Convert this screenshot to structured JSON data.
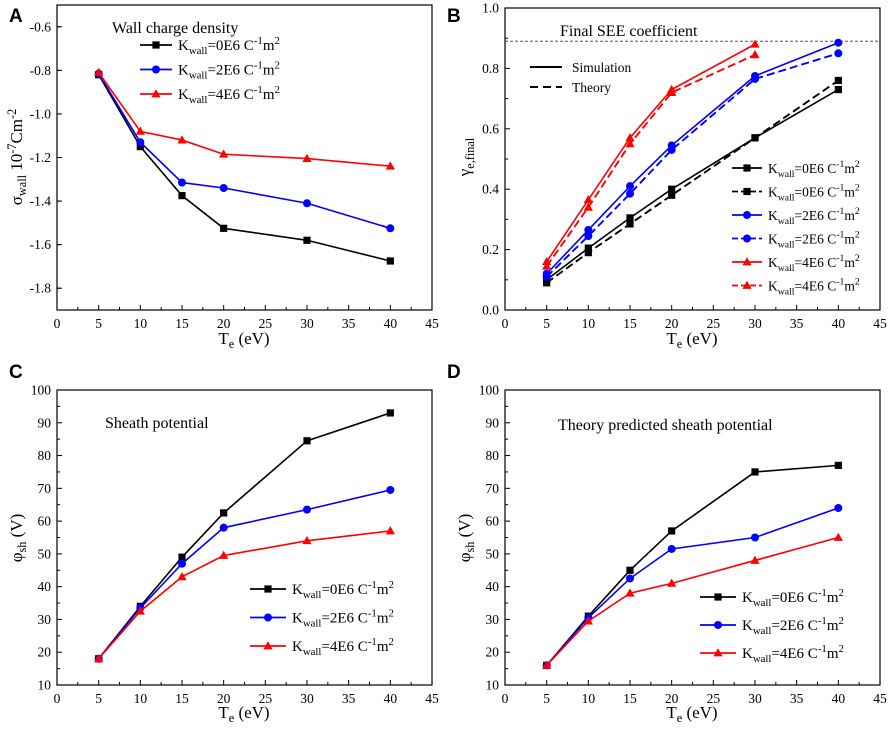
{
  "colors": {
    "black": "#000000",
    "blue": "#0000ff",
    "red": "#ff0000"
  },
  "chart_data": [
    {
      "panel": "A",
      "type": "line",
      "title": "Wall charge density",
      "xlabel": {
        "base": "T",
        "sub": "e",
        "rest": " (eV)"
      },
      "ylabel": {
        "base": "σ",
        "sub": "wall",
        "rest": " 10",
        "sup": "-7",
        "rest2": "Cm",
        "sup2": "-2"
      },
      "xlim": [
        0,
        45
      ],
      "ylim": [
        -1.9,
        -0.5
      ],
      "xticks": [
        0,
        5,
        10,
        15,
        20,
        25,
        30,
        35,
        40,
        45
      ],
      "yticks": [
        -0.6,
        -0.8,
        -1.0,
        -1.2,
        -1.4,
        -1.6,
        -1.8
      ],
      "xtick_labels": [
        "0",
        "5",
        "10",
        "15",
        "20",
        "25",
        "30",
        "35",
        "40",
        "45"
      ],
      "ytick_labels": [
        "-0.6",
        "-0.8",
        "-1.0",
        "-1.2",
        "-1.4",
        "-1.6",
        "-1.8"
      ],
      "x": [
        5,
        10,
        15,
        20,
        30,
        40
      ],
      "series": [
        {
          "name": "Kwall=0E6 C-1m2",
          "color": "black",
          "marker": "square",
          "dash": false,
          "values": [
            -0.82,
            -1.15,
            -1.375,
            -1.525,
            -1.58,
            -1.675
          ]
        },
        {
          "name": "Kwall=2E6 C-1m2",
          "color": "blue",
          "marker": "circle",
          "dash": false,
          "values": [
            -0.815,
            -1.13,
            -1.315,
            -1.34,
            -1.41,
            -1.525
          ]
        },
        {
          "name": "Kwall=4E6 C-1m2",
          "color": "red",
          "marker": "triangle",
          "dash": false,
          "values": [
            -0.81,
            -1.08,
            -1.12,
            -1.185,
            -1.205,
            -1.24
          ]
        }
      ],
      "legend": {
        "position": "top-center",
        "entries": [
          {
            "label": {
              "base": "K",
              "sub": "wall",
              "rest": "=0E6 C",
              "sup": "-1",
              "rest2": "m",
              "sup2": "2"
            }
          },
          {
            "label": {
              "base": "K",
              "sub": "wall",
              "rest": "=2E6 C",
              "sup": "-1",
              "rest2": "m",
              "sup2": "2"
            }
          },
          {
            "label": {
              "base": "K",
              "sub": "wall",
              "rest": "=4E6 C",
              "sup": "-1",
              "rest2": "m",
              "sup2": "2"
            }
          }
        ]
      }
    },
    {
      "panel": "B",
      "type": "line",
      "title": "Final SEE coefficient",
      "reference_line": 0.89,
      "xlabel": {
        "base": "T",
        "sub": "e",
        "rest": " (eV)"
      },
      "ylabel": {
        "base": "γ",
        "sub": "e,final"
      },
      "xlim": [
        0,
        45
      ],
      "ylim": [
        0.0,
        1.0
      ],
      "xticks": [
        0,
        5,
        10,
        15,
        20,
        25,
        30,
        35,
        40,
        45
      ],
      "yticks": [
        0.0,
        0.2,
        0.4,
        0.6,
        0.8,
        1.0
      ],
      "xtick_labels": [
        "0",
        "5",
        "10",
        "15",
        "20",
        "25",
        "30",
        "35",
        "40",
        "45"
      ],
      "ytick_labels": [
        "0.0",
        "0.2",
        "0.4",
        "0.6",
        "0.8",
        "1.0"
      ],
      "series": [
        {
          "name": "Kwall=0E6 C-1m2 Simulation",
          "color": "black",
          "marker": "square",
          "dash": false,
          "x": [
            5,
            10,
            15,
            20,
            30,
            40
          ],
          "values": [
            0.1,
            0.205,
            0.305,
            0.4,
            0.57,
            0.73
          ]
        },
        {
          "name": "Kwall=0E6 C-1m2 Theory",
          "color": "black",
          "marker": "square",
          "dash": true,
          "x": [
            5,
            10,
            15,
            20,
            30,
            40
          ],
          "values": [
            0.09,
            0.19,
            0.285,
            0.38,
            0.57,
            0.76
          ]
        },
        {
          "name": "Kwall=2E6 C-1m2 Simulation",
          "color": "blue",
          "marker": "circle",
          "dash": false,
          "x": [
            5,
            10,
            15,
            20,
            30,
            40
          ],
          "values": [
            0.12,
            0.265,
            0.41,
            0.545,
            0.775,
            0.885
          ]
        },
        {
          "name": "Kwall=2E6 C-1m2 Theory",
          "color": "blue",
          "marker": "circle",
          "dash": true,
          "x": [
            5,
            10,
            15,
            20,
            30,
            40
          ],
          "values": [
            0.11,
            0.245,
            0.385,
            0.53,
            0.765,
            0.85
          ]
        },
        {
          "name": "Kwall=4E6 C-1m2 Simulation",
          "color": "red",
          "marker": "triangle",
          "dash": false,
          "x": [
            5,
            10,
            15,
            20,
            30
          ],
          "values": [
            0.16,
            0.365,
            0.57,
            0.73,
            0.88
          ]
        },
        {
          "name": "Kwall=4E6 C-1m2 Theory",
          "color": "red",
          "marker": "triangle",
          "dash": true,
          "x": [
            5,
            10,
            15,
            20,
            30
          ],
          "values": [
            0.145,
            0.34,
            0.55,
            0.72,
            0.845
          ]
        }
      ],
      "style_legend": {
        "position": "top-left",
        "entries": [
          {
            "label": "Simulation",
            "dash": false
          },
          {
            "label": "Theory",
            "dash": true
          }
        ]
      },
      "legend": {
        "position": "bottom-right",
        "entries": [
          {
            "label": {
              "base": "K",
              "sub": "wall",
              "rest": "=0E6 C",
              "sup": "-1",
              "rest2": "m",
              "sup2": "2"
            }
          },
          {
            "label": {
              "base": "K",
              "sub": "wall",
              "rest": "=0E6 C",
              "sup": "-1",
              "rest2": "m",
              "sup2": "2"
            }
          },
          {
            "label": {
              "base": "K",
              "sub": "wall",
              "rest": "=2E6 C",
              "sup": "-1",
              "rest2": "m",
              "sup2": "2"
            }
          },
          {
            "label": {
              "base": "K",
              "sub": "wall",
              "rest": "=2E6 C",
              "sup": "-1",
              "rest2": "m",
              "sup2": "2"
            }
          },
          {
            "label": {
              "base": "K",
              "sub": "wall",
              "rest": "=4E6 C",
              "sup": "-1",
              "rest2": "m",
              "sup2": "2"
            }
          },
          {
            "label": {
              "base": "K",
              "sub": "wall",
              "rest": "=4E6 C",
              "sup": "-1",
              "rest2": "m",
              "sup2": "2"
            }
          }
        ]
      }
    },
    {
      "panel": "C",
      "type": "line",
      "title": "Sheath potential",
      "xlabel": {
        "base": "T",
        "sub": "e",
        "rest": " (eV)"
      },
      "ylabel": {
        "base": "φ",
        "sub": "sh",
        "rest": " (V)"
      },
      "xlim": [
        0,
        45
      ],
      "ylim": [
        10,
        100
      ],
      "xticks": [
        0,
        5,
        10,
        15,
        20,
        25,
        30,
        35,
        40,
        45
      ],
      "yticks": [
        10,
        20,
        30,
        40,
        50,
        60,
        70,
        80,
        90,
        100
      ],
      "xtick_labels": [
        "0",
        "5",
        "10",
        "15",
        "20",
        "25",
        "30",
        "35",
        "40",
        "45"
      ],
      "ytick_labels": [
        "10",
        "20",
        "30",
        "40",
        "50",
        "60",
        "70",
        "80",
        "90",
        "100"
      ],
      "x": [
        5,
        10,
        15,
        20,
        30,
        40
      ],
      "series": [
        {
          "name": "Kwall=0E6 C-1m2",
          "color": "black",
          "marker": "square",
          "dash": false,
          "values": [
            18,
            34,
            49,
            62.5,
            84.5,
            93
          ]
        },
        {
          "name": "Kwall=2E6 C-1m2",
          "color": "blue",
          "marker": "circle",
          "dash": false,
          "values": [
            18,
            33.5,
            47,
            58,
            63.5,
            69.5
          ]
        },
        {
          "name": "Kwall=4E6 C-1m2",
          "color": "red",
          "marker": "triangle",
          "dash": false,
          "values": [
            18,
            32.5,
            43,
            49.5,
            54,
            57
          ]
        }
      ],
      "legend": {
        "position": "bottom-right",
        "entries": [
          {
            "label": {
              "base": "K",
              "sub": "wall",
              "rest": "=0E6 C",
              "sup": "-1",
              "rest2": "m",
              "sup2": "2"
            }
          },
          {
            "label": {
              "base": "K",
              "sub": "wall",
              "rest": "=2E6 C",
              "sup": "-1",
              "rest2": "m",
              "sup2": "2"
            }
          },
          {
            "label": {
              "base": "K",
              "sub": "wall",
              "rest": "=4E6 C",
              "sup": "-1",
              "rest2": "m",
              "sup2": "2"
            }
          }
        ]
      }
    },
    {
      "panel": "D",
      "type": "line",
      "title": "Theory predicted sheath potential",
      "xlabel": {
        "base": "T",
        "sub": "e",
        "rest": " (eV)"
      },
      "ylabel": {
        "base": "φ",
        "sub": "sh",
        "rest": " (V)"
      },
      "xlim": [
        0,
        45
      ],
      "ylim": [
        10,
        100
      ],
      "xticks": [
        0,
        5,
        10,
        15,
        20,
        25,
        30,
        35,
        40,
        45
      ],
      "yticks": [
        10,
        20,
        30,
        40,
        50,
        60,
        70,
        80,
        90,
        100
      ],
      "xtick_labels": [
        "0",
        "5",
        "10",
        "15",
        "20",
        "25",
        "30",
        "35",
        "40",
        "45"
      ],
      "ytick_labels": [
        "10",
        "20",
        "30",
        "40",
        "50",
        "60",
        "70",
        "80",
        "90",
        "100"
      ],
      "x": [
        5,
        10,
        15,
        20,
        30,
        40
      ],
      "series": [
        {
          "name": "Kwall=0E6 C-1m2",
          "color": "black",
          "marker": "square",
          "dash": false,
          "values": [
            16,
            31,
            45,
            57,
            75,
            77
          ]
        },
        {
          "name": "Kwall=2E6 C-1m2",
          "color": "blue",
          "marker": "circle",
          "dash": false,
          "values": [
            16,
            30.5,
            42.5,
            51.5,
            55,
            64
          ]
        },
        {
          "name": "Kwall=4E6 C-1m2",
          "color": "red",
          "marker": "triangle",
          "dash": false,
          "values": [
            16,
            29.5,
            38,
            41,
            48,
            55
          ]
        }
      ],
      "legend": {
        "position": "bottom-right",
        "entries": [
          {
            "label": {
              "base": "K",
              "sub": "wall",
              "rest": "=0E6 C",
              "sup": "-1",
              "rest2": "m",
              "sup2": "2"
            }
          },
          {
            "label": {
              "base": "K",
              "sub": "wall",
              "rest": "=2E6 C",
              "sup": "-1",
              "rest2": "m",
              "sup2": "2"
            }
          },
          {
            "label": {
              "base": "K",
              "sub": "wall",
              "rest": "=4E6 C",
              "sup": "-1",
              "rest2": "m",
              "sup2": "2"
            }
          }
        ]
      }
    }
  ]
}
